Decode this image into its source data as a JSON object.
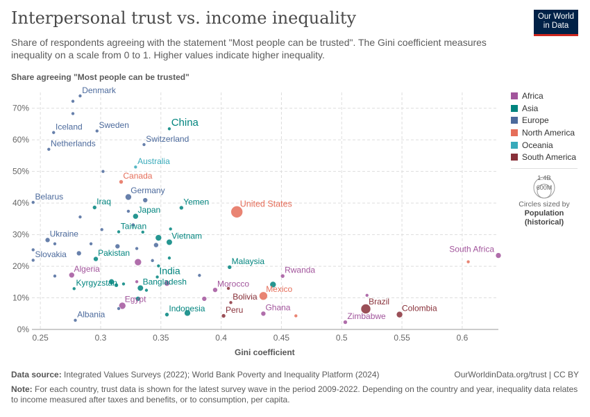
{
  "header": {
    "title": "Interpersonal trust vs. income inequality",
    "subtitle": "Share of respondents agreeing with the statement \"Most people can be trusted\". The Gini coefficient measures inequality on a scale from 0 to 1. Higher values indicate higher inequality."
  },
  "logo": {
    "line1": "Our World",
    "line2": "in Data"
  },
  "chart_data": {
    "type": "scatter",
    "title": "Interpersonal trust vs. income inequality",
    "xlabel": "Gini coefficient",
    "ylabel": "Share agreeing \"Most people can be trusted\"",
    "xlim": [
      0.243,
      0.63
    ],
    "ylim": [
      0,
      75
    ],
    "xticks": [
      0.25,
      0.3,
      0.35,
      0.4,
      0.45,
      0.5,
      0.55,
      0.6
    ],
    "xtick_labels": [
      "0.25",
      "0.3",
      "0.35",
      "0.4",
      "0.45",
      "0.5",
      "0.55",
      "0.6"
    ],
    "yticks": [
      0,
      10,
      20,
      30,
      40,
      50,
      60,
      70
    ],
    "ytick_labels": [
      "0%",
      "10%",
      "20%",
      "30%",
      "40%",
      "50%",
      "60%",
      "70%"
    ],
    "grid": true,
    "legend_position": "right",
    "regions": [
      {
        "name": "Africa",
        "color": "#a2559c"
      },
      {
        "name": "Asia",
        "color": "#00847e"
      },
      {
        "name": "Europe",
        "color": "#4c6a9c"
      },
      {
        "name": "North America",
        "color": "#e56e5a"
      },
      {
        "name": "Oceania",
        "color": "#38aaba"
      },
      {
        "name": "South America",
        "color": "#883039"
      }
    ],
    "points": [
      {
        "label": "China",
        "region": "Asia",
        "x": 0.357,
        "y": 63.5,
        "size": 2.5
      },
      {
        "label": "India",
        "region": "Asia",
        "x": 0.347,
        "y": 16.6,
        "size": 2.5
      },
      {
        "label": "Indonesia",
        "region": "Asia",
        "x": 0.355,
        "y": 4.7,
        "size": 3.0
      },
      {
        "label": "Pakistan",
        "region": "Asia",
        "x": 0.296,
        "y": 22.3,
        "size": 3.5
      },
      {
        "label": "Bangladesh",
        "region": "Asia",
        "x": 0.333,
        "y": 13.1,
        "size": 4.3
      },
      {
        "label": "Japan",
        "region": "Asia",
        "x": 0.329,
        "y": 35.8,
        "size": 4.0
      },
      {
        "label": "Vietnam",
        "region": "Asia",
        "x": 0.357,
        "y": 27.6,
        "size": 4.3
      },
      {
        "label": "Iraq",
        "region": "Asia",
        "x": 0.295,
        "y": 38.6,
        "size": 3.0
      },
      {
        "label": "Yemen",
        "region": "Asia",
        "x": 0.367,
        "y": 38.5,
        "size": 3.0
      },
      {
        "label": "Taiwan",
        "region": "Asia",
        "x": 0.315,
        "y": 30.9,
        "size": 2.5
      },
      {
        "label": "Malaysia",
        "region": "Asia",
        "x": 0.407,
        "y": 19.7,
        "size": 3.0
      },
      {
        "label": "Kyrgyzstan",
        "region": "Asia",
        "x": 0.278,
        "y": 12.9,
        "size": 2.5
      },
      {
        "label": "Denmark",
        "region": "Europe",
        "x": 0.283,
        "y": 73.9,
        "size": 2.5
      },
      {
        "label": "Sweden",
        "region": "Europe",
        "x": 0.297,
        "y": 62.8,
        "size": 2.5
      },
      {
        "label": "Iceland",
        "region": "Europe",
        "x": 0.261,
        "y": 62.3,
        "size": 2.5
      },
      {
        "label": "Netherlands",
        "region": "Europe",
        "x": 0.257,
        "y": 57.0,
        "size": 2.5
      },
      {
        "label": "Switzerland",
        "region": "Europe",
        "x": 0.336,
        "y": 58.5,
        "size": 2.5
      },
      {
        "label": "Germany",
        "region": "Europe",
        "x": 0.323,
        "y": 41.9,
        "size": 4.5
      },
      {
        "label": "Belarus",
        "region": "Europe",
        "x": 0.244,
        "y": 40.2,
        "size": 2.5
      },
      {
        "label": "Ukraine",
        "region": "Europe",
        "x": 0.256,
        "y": 28.3,
        "size": 3.5
      },
      {
        "label": "Slovakia",
        "region": "Europe",
        "x": 0.244,
        "y": 21.9,
        "size": 2.5
      },
      {
        "label": "Albania",
        "region": "Europe",
        "x": 0.279,
        "y": 2.9,
        "size": 2.5
      },
      {
        "label": "Australia",
        "region": "Oceania",
        "x": 0.329,
        "y": 51.4,
        "size": 2.5
      },
      {
        "label": "Canada",
        "region": "North America",
        "x": 0.317,
        "y": 46.7,
        "size": 3.0
      },
      {
        "label": "United States",
        "region": "North America",
        "x": 0.413,
        "y": 37.2,
        "size": 8.5
      },
      {
        "label": "Mexico",
        "region": "North America",
        "x": 0.435,
        "y": 10.6,
        "size": 6.0
      },
      {
        "label": "Algeria",
        "region": "Africa",
        "x": 0.276,
        "y": 17.2,
        "size": 4.0
      },
      {
        "label": "Egypt",
        "region": "Africa",
        "x": 0.318,
        "y": 7.5,
        "size": 5.0
      },
      {
        "label": "Morocco",
        "region": "Africa",
        "x": 0.395,
        "y": 12.5,
        "size": 3.5
      },
      {
        "label": "Rwanda",
        "region": "Africa",
        "x": 0.451,
        "y": 16.9,
        "size": 3.0
      },
      {
        "label": "Ghana",
        "region": "Africa",
        "x": 0.435,
        "y": 5.0,
        "size": 3.5
      },
      {
        "label": "Zimbabwe",
        "region": "Africa",
        "x": 0.503,
        "y": 2.3,
        "size": 3.0
      },
      {
        "label": "South Africa",
        "region": "Africa",
        "x": 0.63,
        "y": 23.4,
        "size": 4.0
      },
      {
        "label": "Brazil",
        "region": "South America",
        "x": 0.52,
        "y": 6.5,
        "size": 7.0
      },
      {
        "label": "Colombia",
        "region": "South America",
        "x": 0.548,
        "y": 4.7,
        "size": 4.5
      },
      {
        "label": "Bolivia",
        "region": "South America",
        "x": 0.408,
        "y": 8.5,
        "size": 2.5
      },
      {
        "label": "Peru",
        "region": "South America",
        "x": 0.402,
        "y": 4.3,
        "size": 3.0
      },
      {
        "region": "Asia",
        "x": 0.348,
        "y": 29.0,
        "size": 4.5
      },
      {
        "region": "Asia",
        "x": 0.309,
        "y": 15.1,
        "size": 4.0
      },
      {
        "region": "Asia",
        "x": 0.331,
        "y": 9.7,
        "size": 3.5
      },
      {
        "region": "Asia",
        "x": 0.372,
        "y": 5.2,
        "size": 4.5
      },
      {
        "region": "Asia",
        "x": 0.443,
        "y": 14.2,
        "size": 4.5
      },
      {
        "region": "Asia",
        "x": 0.313,
        "y": 14.0,
        "size": 3.0
      },
      {
        "region": "Asia",
        "x": 0.338,
        "y": 12.4,
        "size": 2.5
      },
      {
        "region": "Asia",
        "x": 0.335,
        "y": 30.8,
        "size": 2.5
      },
      {
        "region": "Asia",
        "x": 0.358,
        "y": 31.8,
        "size": 2.5
      },
      {
        "region": "Asia",
        "x": 0.319,
        "y": 14.4,
        "size": 2.5
      },
      {
        "region": "Asia",
        "x": 0.348,
        "y": 20.1,
        "size": 2.5
      },
      {
        "region": "Asia",
        "x": 0.357,
        "y": 22.6,
        "size": 2.5
      },
      {
        "region": "Europe",
        "x": 0.277,
        "y": 72.2,
        "size": 2.5
      },
      {
        "region": "Europe",
        "x": 0.277,
        "y": 68.3,
        "size": 2.5
      },
      {
        "region": "Europe",
        "x": 0.302,
        "y": 50.0,
        "size": 2.5
      },
      {
        "region": "Europe",
        "x": 0.283,
        "y": 35.6,
        "size": 2.5
      },
      {
        "region": "Europe",
        "x": 0.323,
        "y": 37.4,
        "size": 2.5
      },
      {
        "region": "Europe",
        "x": 0.337,
        "y": 40.9,
        "size": 3.5
      },
      {
        "region": "Europe",
        "x": 0.301,
        "y": 31.6,
        "size": 2.5
      },
      {
        "region": "Europe",
        "x": 0.262,
        "y": 27.1,
        "size": 2.5
      },
      {
        "region": "Europe",
        "x": 0.282,
        "y": 24.1,
        "size": 3.5
      },
      {
        "region": "Europe",
        "x": 0.292,
        "y": 27.1,
        "size": 2.5
      },
      {
        "region": "Europe",
        "x": 0.314,
        "y": 26.3,
        "size": 3.5
      },
      {
        "region": "Europe",
        "x": 0.33,
        "y": 25.6,
        "size": 2.5
      },
      {
        "region": "Europe",
        "x": 0.343,
        "y": 21.8,
        "size": 2.5
      },
      {
        "region": "Europe",
        "x": 0.346,
        "y": 26.7,
        "size": 3.5
      },
      {
        "region": "Europe",
        "x": 0.244,
        "y": 25.2,
        "size": 2.5
      },
      {
        "region": "Europe",
        "x": 0.327,
        "y": 33.1,
        "size": 2.5
      },
      {
        "region": "Europe",
        "x": 0.315,
        "y": 6.6,
        "size": 2.5
      },
      {
        "region": "Europe",
        "x": 0.382,
        "y": 17.1,
        "size": 2.5
      },
      {
        "region": "Europe",
        "x": 0.262,
        "y": 16.9,
        "size": 2.5
      },
      {
        "region": "Africa",
        "x": 0.331,
        "y": 21.3,
        "size": 5.0
      },
      {
        "region": "Africa",
        "x": 0.386,
        "y": 9.7,
        "size": 3.5
      },
      {
        "region": "Africa",
        "x": 0.33,
        "y": 15.1,
        "size": 2.5
      },
      {
        "region": "Africa",
        "x": 0.355,
        "y": 14.6,
        "size": 4.0
      },
      {
        "region": "Africa",
        "x": 0.521,
        "y": 10.8,
        "size": 2.5
      },
      {
        "region": "South America",
        "x": 0.406,
        "y": 13.0,
        "size": 2.5
      },
      {
        "region": "North America",
        "x": 0.462,
        "y": 4.3,
        "size": 2.5
      },
      {
        "region": "North America",
        "x": 0.605,
        "y": 21.4,
        "size": 2.5
      }
    ]
  },
  "size_legend": {
    "large": "1.4B",
    "small": "600M",
    "caption": "Circles sized by",
    "measure_line1": "Population",
    "measure_line2": "(historical)"
  },
  "footer": {
    "source_label": "Data source:",
    "source_text": "Integrated Values Surveys (2022); World Bank Poverty and Inequality Platform (2024)",
    "url": "OurWorldinData.org/trust | CC BY",
    "note_label": "Note:",
    "note_text": "For each country, trust data is shown for the latest survey wave in the period 2009-2022. Depending on the country and year, inequality data relates to income measured after taxes and benefits, or to consumption, per capita."
  }
}
